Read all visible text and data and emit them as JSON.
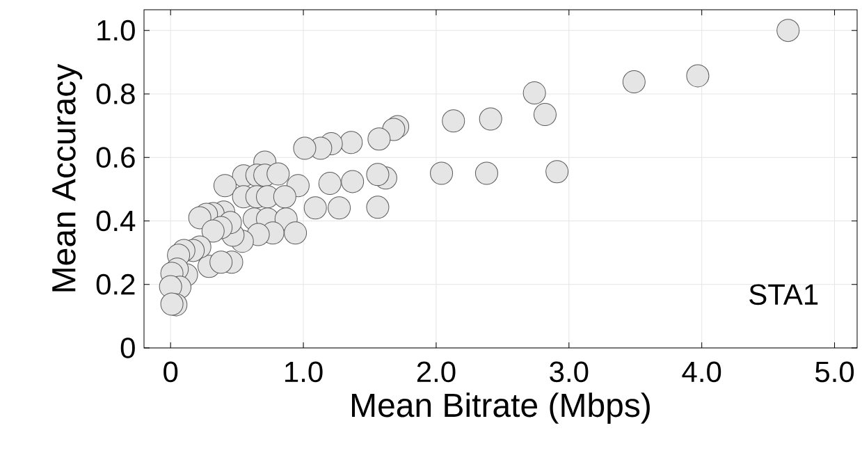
{
  "chart_data": {
    "type": "scatter",
    "xlabel": "Mean Bitrate (Mbps)",
    "ylabel": "Mean Accuracy",
    "annotations": [
      "STA1"
    ],
    "xlim": [
      -0.2,
      5.17
    ],
    "ylim": [
      0,
      1.065
    ],
    "xticks": [
      {
        "value": 0,
        "label": "0"
      },
      {
        "value": 1,
        "label": "1.0"
      },
      {
        "value": 2,
        "label": "2.0"
      },
      {
        "value": 3,
        "label": "3.0"
      },
      {
        "value": 4,
        "label": "4.0"
      },
      {
        "value": 5,
        "label": "5.0"
      }
    ],
    "yticks": [
      {
        "value": 0,
        "label": "0"
      },
      {
        "value": 0.2,
        "label": "0.2"
      },
      {
        "value": 0.4,
        "label": "0.4"
      },
      {
        "value": 0.6,
        "label": "0.6"
      },
      {
        "value": 0.8,
        "label": "0.8"
      },
      {
        "value": 1,
        "label": "1.0"
      }
    ],
    "grid": true,
    "marker": "circle",
    "series": [
      {
        "color": "#e5e5e5",
        "x": [
          4.65,
          3.97,
          3.49,
          2.74,
          2.82,
          2.41,
          2.13,
          1.71,
          1.68,
          1.57,
          1.36,
          1.21,
          1.13,
          1.01,
          2.91,
          2.38,
          2.04,
          1.62,
          1.56,
          1.37,
          1.2,
          1.56,
          1.27,
          1.09,
          0.71,
          0.55,
          0.65,
          0.71,
          0.81,
          0.96,
          0.41,
          0.55,
          0.65,
          0.73,
          0.86,
          0.63,
          0.73,
          0.87,
          0.77,
          0.94,
          0.66,
          0.54,
          0.47,
          0.4,
          0.32,
          0.27,
          0.22,
          0.45,
          0.38,
          0.32,
          0.46,
          0.29,
          0.38,
          0.22,
          0.17,
          0.1,
          0.06,
          0.12,
          0.05,
          0.01,
          0.07,
          0.0,
          0.04,
          0.01
        ],
        "values": [
          1.0,
          0.857,
          0.838,
          0.803,
          0.735,
          0.721,
          0.715,
          0.697,
          0.688,
          0.658,
          0.647,
          0.643,
          0.629,
          0.629,
          0.555,
          0.55,
          0.55,
          0.535,
          0.546,
          0.524,
          0.518,
          0.443,
          0.441,
          0.441,
          0.585,
          0.542,
          0.544,
          0.544,
          0.548,
          0.511,
          0.511,
          0.476,
          0.476,
          0.476,
          0.476,
          0.406,
          0.406,
          0.406,
          0.362,
          0.362,
          0.357,
          0.336,
          0.355,
          0.428,
          0.423,
          0.421,
          0.41,
          0.395,
          0.379,
          0.368,
          0.27,
          0.257,
          0.27,
          0.318,
          0.307,
          0.307,
          0.292,
          0.23,
          0.248,
          0.235,
          0.191,
          0.193,
          0.136,
          0.138
        ]
      }
    ]
  }
}
